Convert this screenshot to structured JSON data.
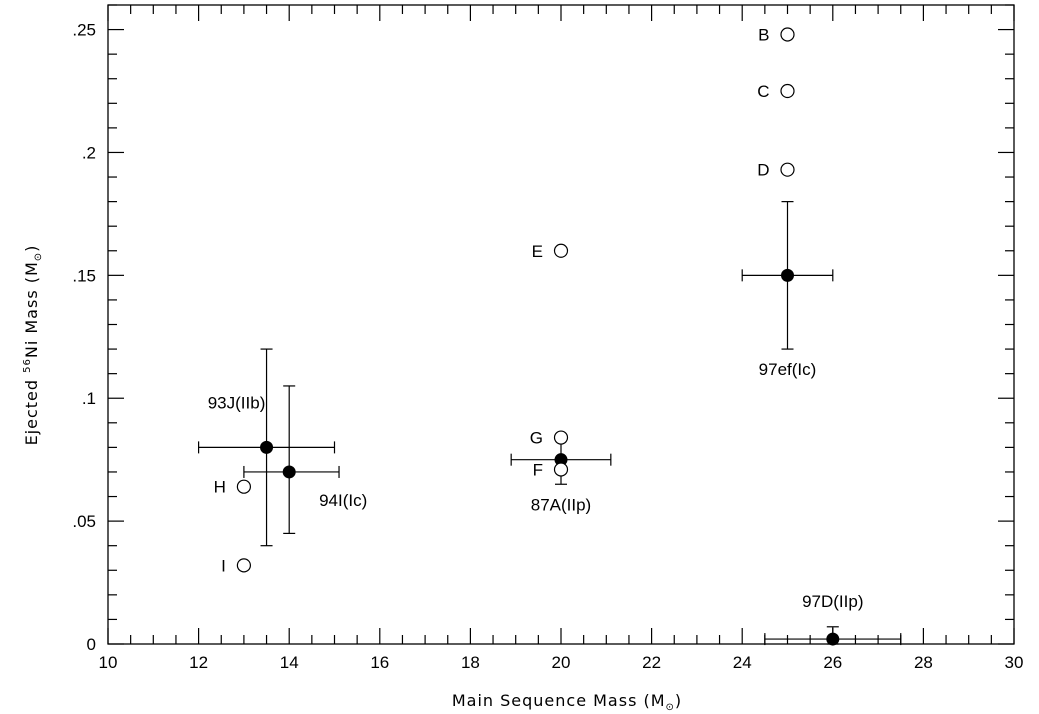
{
  "chart_data": {
    "type": "scatter",
    "title": "",
    "xlabel": {
      "prefix": "Main Sequence Mass (M",
      "sub": "⊙",
      "suffix": ")"
    },
    "ylabel": {
      "prefix": "Ejected ",
      "sup": "56",
      "mid": "Ni Mass (M",
      "sub": "⊙",
      "suffix": ")"
    },
    "xlim": [
      10,
      30
    ],
    "ylim": [
      0,
      0.26
    ],
    "x_ticks": [
      {
        "v": 10,
        "label": "10"
      },
      {
        "v": 12,
        "label": "12"
      },
      {
        "v": 14,
        "label": "14"
      },
      {
        "v": 16,
        "label": "16"
      },
      {
        "v": 18,
        "label": "18"
      },
      {
        "v": 20,
        "label": "20"
      },
      {
        "v": 22,
        "label": "22"
      },
      {
        "v": 24,
        "label": "24"
      },
      {
        "v": 26,
        "label": "26"
      },
      {
        "v": 28,
        "label": "28"
      },
      {
        "v": 30,
        "label": "30"
      }
    ],
    "y_ticks": [
      {
        "v": 0,
        "label": "0"
      },
      {
        "v": 0.05,
        "label": ".05"
      },
      {
        "v": 0.1,
        "label": ".1"
      },
      {
        "v": 0.15,
        "label": ".15"
      },
      {
        "v": 0.2,
        "label": ".2"
      },
      {
        "v": 0.25,
        "label": ".25"
      }
    ],
    "x_minor_step": 0.5,
    "y_minor_step": 0.01,
    "grid": false,
    "observed": [
      {
        "label": "93J(IIb)",
        "x": 13.5,
        "y": 0.08,
        "x_err": [
          12.0,
          15.0
        ],
        "y_err": [
          0.04,
          0.12
        ],
        "label_pos": "upper-left"
      },
      {
        "label": "94I(Ic)",
        "x": 14.0,
        "y": 0.07,
        "x_err": [
          13.0,
          15.1
        ],
        "y_err": [
          0.045,
          0.105
        ],
        "label_pos": "lower-right"
      },
      {
        "label": "87A(IIp)",
        "x": 20.0,
        "y": 0.075,
        "x_err": [
          18.9,
          21.1
        ],
        "y_err": [
          0.065,
          0.085
        ],
        "label_pos": "below"
      },
      {
        "label": "97ef(Ic)",
        "x": 25.0,
        "y": 0.15,
        "x_err": [
          24.0,
          26.0
        ],
        "y_err": [
          0.12,
          0.18
        ],
        "label_pos": "below"
      },
      {
        "label": "97D(IIp)",
        "x": 26.0,
        "y": 0.002,
        "x_err": [
          24.5,
          27.5
        ],
        "y_err": [
          0.0,
          0.007
        ],
        "label_pos": "above"
      }
    ],
    "models": [
      {
        "label": "B",
        "x": 25,
        "y": 0.248
      },
      {
        "label": "C",
        "x": 25,
        "y": 0.225
      },
      {
        "label": "D",
        "x": 25,
        "y": 0.193
      },
      {
        "label": "E",
        "x": 20,
        "y": 0.16
      },
      {
        "label": "G",
        "x": 20,
        "y": 0.084
      },
      {
        "label": "F",
        "x": 20,
        "y": 0.071
      },
      {
        "label": "H",
        "x": 13,
        "y": 0.064
      },
      {
        "label": "I",
        "x": 13,
        "y": 0.032
      }
    ]
  }
}
